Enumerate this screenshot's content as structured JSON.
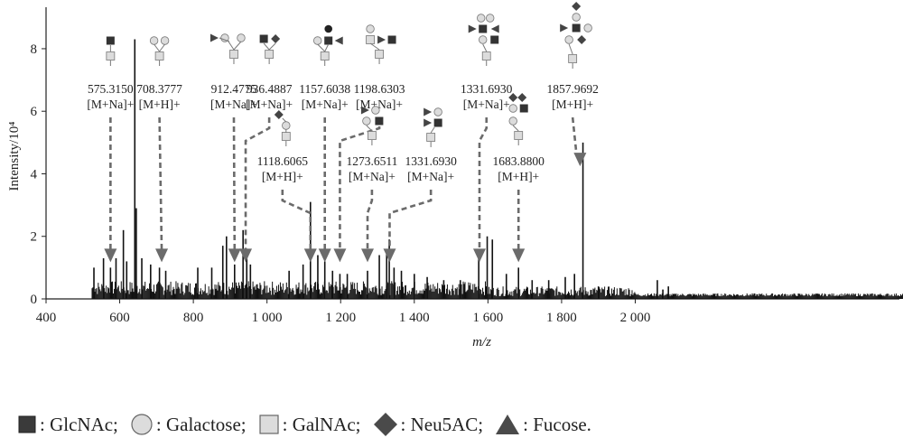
{
  "chart_data": {
    "type": "mass-spectrum",
    "xlabel": "m/z",
    "ylabel": "Intensity/10⁴",
    "xlim": [
      400,
      3100
    ],
    "ylim": [
      0,
      9
    ],
    "x_ticks": [
      400,
      600,
      800,
      1000,
      1200,
      1400,
      1600,
      1800,
      2000
    ],
    "x_tick_labels": [
      "400",
      "600",
      "800",
      "1 000",
      "1 200",
      "1 400",
      "1 600",
      "1 800",
      "2 000"
    ],
    "y_ticks": [
      0,
      2,
      4,
      6,
      8
    ],
    "y_tick_labels": [
      "0",
      "2",
      "4",
      "6",
      "8"
    ],
    "peaks": [
      {
        "mz": 530,
        "y": 1.0
      },
      {
        "mz": 556,
        "y": 1.3
      },
      {
        "mz": 575,
        "y": 1.0
      },
      {
        "mz": 590,
        "y": 1.3
      },
      {
        "mz": 610,
        "y": 2.2
      },
      {
        "mz": 619,
        "y": 1.2
      },
      {
        "mz": 641,
        "y": 8.3
      },
      {
        "mz": 645,
        "y": 2.9
      },
      {
        "mz": 660,
        "y": 1.3
      },
      {
        "mz": 684,
        "y": 1.1
      },
      {
        "mz": 708,
        "y": 1.0
      },
      {
        "mz": 725,
        "y": 0.9
      },
      {
        "mz": 812,
        "y": 1.0
      },
      {
        "mz": 850,
        "y": 1.0
      },
      {
        "mz": 880,
        "y": 1.7
      },
      {
        "mz": 890,
        "y": 2.0
      },
      {
        "mz": 912,
        "y": 1.1
      },
      {
        "mz": 935,
        "y": 2.2
      },
      {
        "mz": 945,
        "y": 1.4
      },
      {
        "mz": 955,
        "y": 1.1
      },
      {
        "mz": 1060,
        "y": 0.9
      },
      {
        "mz": 1098,
        "y": 1.1
      },
      {
        "mz": 1118,
        "y": 3.1
      },
      {
        "mz": 1138,
        "y": 1.4
      },
      {
        "mz": 1157,
        "y": 1.2
      },
      {
        "mz": 1178,
        "y": 0.9
      },
      {
        "mz": 1198,
        "y": 0.8
      },
      {
        "mz": 1218,
        "y": 0.8
      },
      {
        "mz": 1273,
        "y": 0.9
      },
      {
        "mz": 1305,
        "y": 1.4
      },
      {
        "mz": 1325,
        "y": 1.5
      },
      {
        "mz": 1332,
        "y": 1.9
      },
      {
        "mz": 1345,
        "y": 1.0
      },
      {
        "mz": 1365,
        "y": 0.9
      },
      {
        "mz": 1400,
        "y": 0.8
      },
      {
        "mz": 1435,
        "y": 0.7
      },
      {
        "mz": 1480,
        "y": 0.6
      },
      {
        "mz": 1525,
        "y": 0.6
      },
      {
        "mz": 1575,
        "y": 1.3
      },
      {
        "mz": 1598,
        "y": 2.0
      },
      {
        "mz": 1612,
        "y": 1.9
      },
      {
        "mz": 1650,
        "y": 0.8
      },
      {
        "mz": 1683,
        "y": 1.0
      },
      {
        "mz": 1720,
        "y": 0.6
      },
      {
        "mz": 1765,
        "y": 0.6
      },
      {
        "mz": 1810,
        "y": 0.7
      },
      {
        "mz": 1835,
        "y": 0.8
      },
      {
        "mz": 1858,
        "y": 5.0
      },
      {
        "mz": 1900,
        "y": 0.4
      },
      {
        "mz": 2060,
        "y": 0.6
      },
      {
        "mz": 2075,
        "y": 0.3
      },
      {
        "mz": 2090,
        "y": 0.4
      }
    ],
    "noise_range": [
      525,
      2000
    ],
    "annotations": [
      {
        "mz": 575.315,
        "mz_label": "575.3150",
        "ion": "[M+Na]+",
        "row": 1,
        "label_x": 575,
        "arrow_to_mz": 575
      },
      {
        "mz": 708.3777,
        "mz_label": "708.3777",
        "ion": "[M+H]+",
        "row": 1,
        "label_x": 708,
        "arrow_to_mz": 714
      },
      {
        "mz": 912.4775,
        "mz_label": "912.4775",
        "ion": "[M+Na]+",
        "row": 1,
        "label_x": 910,
        "arrow_to_mz": 912
      },
      {
        "mz": 936.4887,
        "mz_label": "936.4887",
        "ion": "[M+Na]+",
        "row": 1,
        "label_x": 1006,
        "arrow_to_mz": 942
      },
      {
        "mz": 1157.6038,
        "mz_label": "1157.6038",
        "ion": "[M+Na]+",
        "row": 1,
        "label_x": 1157,
        "arrow_to_mz": 1157
      },
      {
        "mz": 1198.6303,
        "mz_label": "1198.6303",
        "ion": "[M+Na]+",
        "row": 1,
        "label_x": 1305,
        "arrow_to_mz": 1198
      },
      {
        "mz": 1331.693,
        "mz_label": "1331.6930",
        "ion": "[M+Na]+",
        "row": 1,
        "label_x": 1596,
        "arrow_to_mz": 1577
      },
      {
        "mz": 1857.9692,
        "mz_label": "1857.9692",
        "ion": "[M+H]+",
        "row": 1,
        "label_x": 1830,
        "arrow_to_mz": 1855
      },
      {
        "mz": 1118.6065,
        "mz_label": "1118.6065",
        "ion": "[M+H]+",
        "row": 2,
        "label_x": 1042,
        "arrow_to_mz": 1118
      },
      {
        "mz": 1273.6511,
        "mz_label": "1273.6511",
        "ion": "[M+Na]+",
        "row": 2,
        "label_x": 1285,
        "arrow_to_mz": 1273
      },
      {
        "mz": 1331.693,
        "mz_label": "1331.6930",
        "ion": "[M+Na]+",
        "row": 2,
        "label_x": 1445,
        "arrow_to_mz": 1333
      },
      {
        "mz": 1683.88,
        "mz_label": "1683.8800",
        "ion": "[M+H]+",
        "row": 2,
        "label_x": 1683,
        "arrow_to_mz": 1683
      }
    ]
  },
  "legend": [
    {
      "symbol": "square-dark",
      "label": ": GlcNAc;",
      "color": "#3a3a3a"
    },
    {
      "symbol": "circle",
      "label": ": Galactose;",
      "color": "#dcdcdc"
    },
    {
      "symbol": "square-light",
      "label": ": GalNAc;",
      "color": "#dcdcdc"
    },
    {
      "symbol": "diamond",
      "label": ": Neu5AC;",
      "color": "#4a4a4a"
    },
    {
      "symbol": "triangle",
      "label": ": Fucose.",
      "color": "#4a4a4a"
    }
  ],
  "colors": {
    "spectrum": "#111111",
    "arrow": "#6b6b6b",
    "axis": "#222222",
    "text": "#222222"
  }
}
